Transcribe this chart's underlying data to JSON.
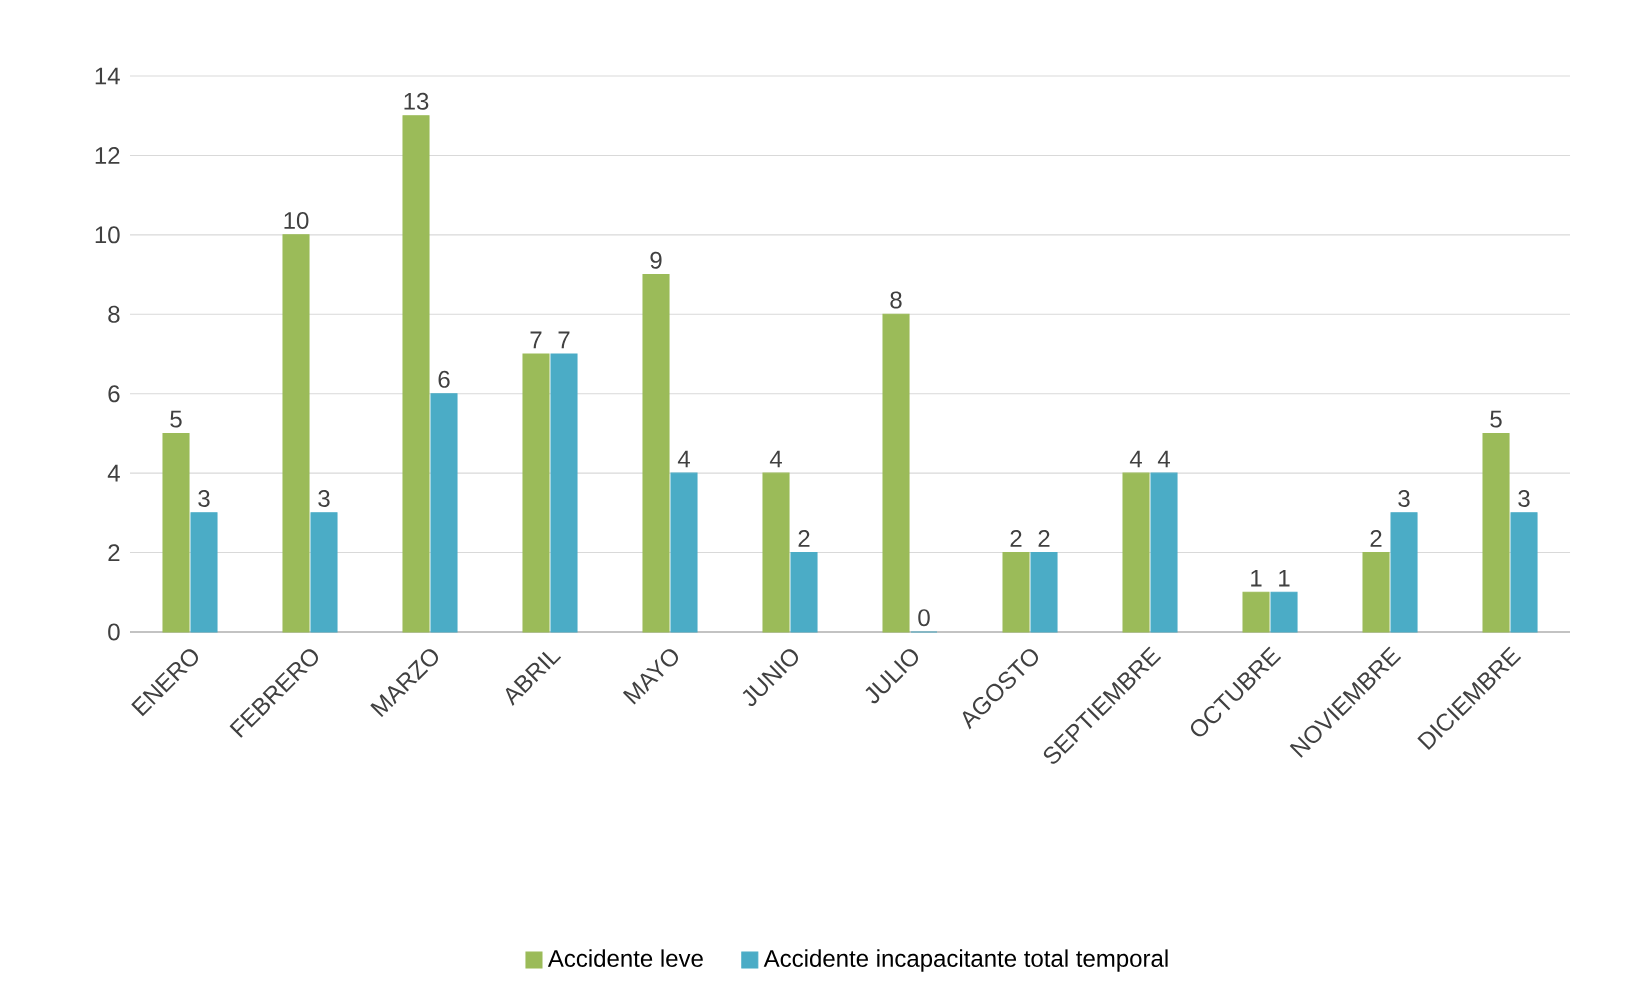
{
  "chart_data": {
    "type": "bar",
    "categories": [
      "ENERO",
      "FEBRERO",
      "MARZO",
      "ABRIL",
      "MAYO",
      "JUNIO",
      "JULIO",
      "AGOSTO",
      "SEPTIEMBRE",
      "OCTUBRE",
      "NOVIEMBRE",
      "DICIEMBRE"
    ],
    "series": [
      {
        "name": "Accidente leve",
        "color": "#9bbb59",
        "values": [
          5,
          10,
          13,
          7,
          9,
          4,
          8,
          2,
          4,
          1,
          2,
          5
        ]
      },
      {
        "name": "Accidente incapacitante total temporal",
        "color": "#4bacc6",
        "values": [
          3,
          3,
          6,
          7,
          4,
          2,
          0,
          2,
          4,
          1,
          3,
          3
        ]
      }
    ],
    "ylim": [
      0,
      14
    ],
    "yticks": [
      0,
      2,
      4,
      6,
      8,
      10,
      12,
      14
    ],
    "grid": "y",
    "legend": "bottom",
    "data_labels": true
  }
}
